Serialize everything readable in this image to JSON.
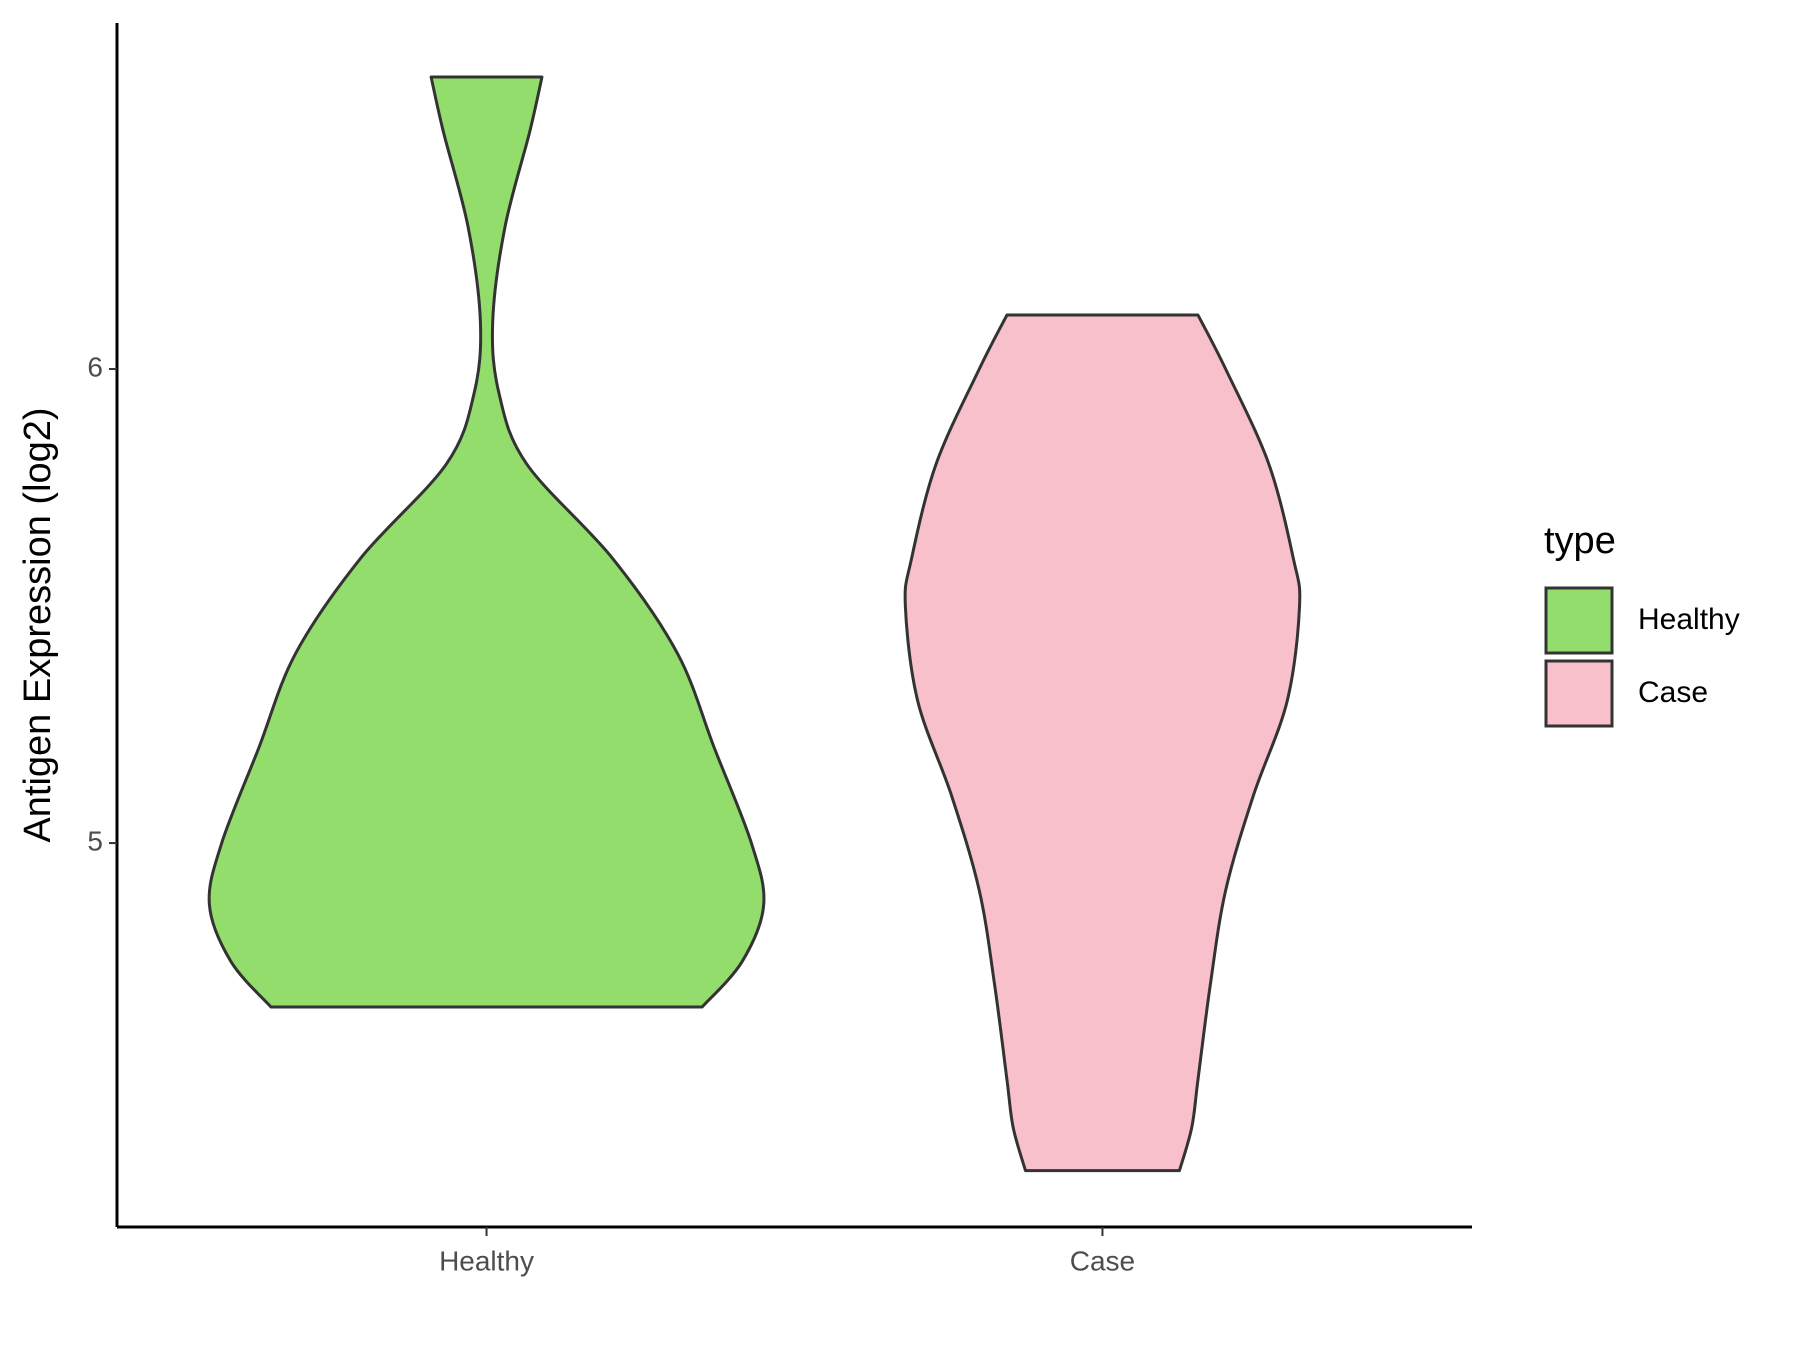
{
  "chart_data": {
    "type": "violin",
    "y_label": "Antigen Expression (log2)",
    "categories": [
      "Healthy",
      "Case"
    ],
    "ylim": [
      4.19,
      6.73
    ],
    "yticks": [
      5,
      6
    ],
    "legend_title": "type",
    "legend": "right",
    "series": [
      {
        "name": "Healthy",
        "color": "#93dd6c",
        "y": [
          6.616,
          6.5,
          6.3,
          6.1,
          5.95,
          5.8,
          5.6,
          5.4,
          5.2,
          5.0,
          4.87,
          4.75,
          4.654
        ],
        "width": [
          0.18,
          0.14,
          0.06,
          0.02,
          0.04,
          0.13,
          0.41,
          0.62,
          0.74,
          0.86,
          0.9,
          0.83,
          0.7
        ]
      },
      {
        "name": "Case",
        "color": "#f7c0cb",
        "y": [
          6.114,
          6.0,
          5.8,
          5.6,
          5.5,
          5.3,
          5.1,
          4.9,
          4.7,
          4.5,
          4.4,
          4.309
        ],
        "width": [
          0.31,
          0.4,
          0.54,
          0.62,
          0.64,
          0.6,
          0.49,
          0.4,
          0.35,
          0.31,
          0.29,
          0.25
        ]
      }
    ]
  }
}
